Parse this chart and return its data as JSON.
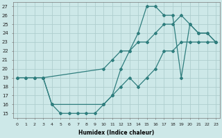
{
  "xlabel": "Humidex (Indice chaleur)",
  "ylabel": "",
  "bg_color": "#cde8e8",
  "grid_color": "#aecece",
  "line_color": "#2e7d7d",
  "xlim": [
    -0.5,
    23.5
  ],
  "ylim": [
    14.5,
    27.5
  ],
  "xticks": [
    0,
    1,
    2,
    3,
    4,
    5,
    6,
    7,
    8,
    9,
    10,
    11,
    12,
    13,
    14,
    15,
    16,
    17,
    18,
    19,
    20,
    21,
    22,
    23
  ],
  "yticks": [
    15,
    16,
    17,
    18,
    19,
    20,
    21,
    22,
    23,
    24,
    25,
    26,
    27
  ],
  "line1": {
    "x": [
      0,
      1,
      2,
      3,
      10,
      11,
      12,
      13,
      14,
      15,
      16,
      17,
      18,
      19,
      20,
      21,
      22,
      23
    ],
    "y": [
      19,
      19,
      19,
      19,
      20,
      21,
      22,
      22,
      23,
      23,
      24,
      25,
      25,
      26,
      25,
      24,
      24,
      23
    ]
  },
  "line2": {
    "x": [
      0,
      1,
      2,
      3,
      4,
      5,
      6,
      7,
      8,
      9,
      10,
      11,
      12,
      13,
      14,
      15,
      16,
      17,
      18,
      19,
      20,
      21,
      22,
      23
    ],
    "y": [
      19,
      19,
      19,
      19,
      16,
      15,
      15,
      15,
      15,
      15,
      16,
      17,
      18,
      19,
      18,
      19,
      20,
      22,
      22,
      23,
      23,
      23,
      23,
      23
    ]
  },
  "line3": {
    "x": [
      3,
      4,
      10,
      11,
      12,
      13,
      14,
      15,
      16,
      17,
      18,
      19,
      20,
      21,
      22,
      23
    ],
    "y": [
      19,
      16,
      16,
      17,
      20,
      22,
      24,
      27,
      27,
      26,
      26,
      19,
      25,
      24,
      24,
      23
    ]
  }
}
